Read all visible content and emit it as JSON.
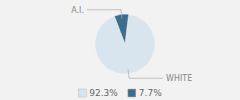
{
  "chart_data": {
    "type": "pie",
    "categories": [
      "WHITE",
      "A.I."
    ],
    "values": [
      92.3,
      7.7
    ],
    "value_labels": [
      "92.3%",
      "7.7%"
    ],
    "colors": [
      "#d9e5ee",
      "#3d6d8a"
    ],
    "legend": "bottom"
  }
}
